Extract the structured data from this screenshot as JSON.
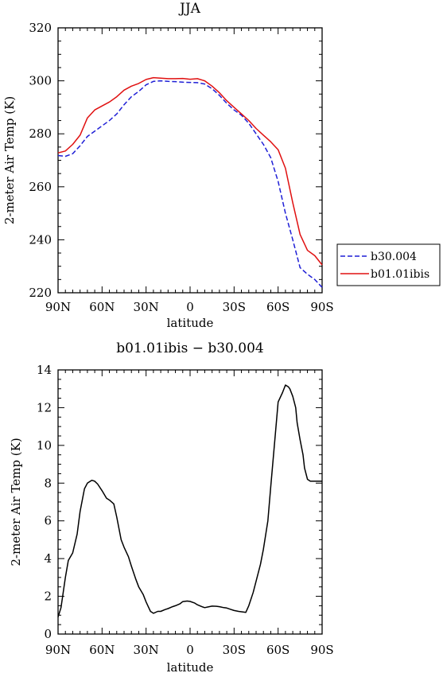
{
  "chart_data": [
    {
      "type": "line",
      "title": "JJA",
      "xlabel": "latitude",
      "ylabel": "2-meter Air Temp (K)",
      "xlim": [
        -90,
        90
      ],
      "ylim": [
        220,
        320
      ],
      "x_ticks": [
        -90,
        -60,
        -30,
        0,
        30,
        60,
        90
      ],
      "x_tick_labels": [
        "90N",
        "60N",
        "30N",
        "0",
        "30S",
        "60S",
        "90S"
      ],
      "y_ticks": [
        220,
        240,
        260,
        280,
        300,
        320
      ],
      "y_tick_labels": [
        "220",
        "240",
        "260",
        "280",
        "300",
        "320"
      ],
      "grid": false,
      "legend_position": "right",
      "series": [
        {
          "name": "b30.004",
          "color": "#1f1fd6",
          "dash": "dashed",
          "x": [
            -90,
            -85,
            -80,
            -75,
            -70,
            -65,
            -60,
            -55,
            -50,
            -45,
            -40,
            -35,
            -30,
            -25,
            -20,
            -15,
            -10,
            -5,
            0,
            5,
            10,
            15,
            20,
            25,
            30,
            35,
            40,
            45,
            50,
            55,
            60,
            65,
            70,
            75,
            80,
            85,
            90
          ],
          "y": [
            271.8,
            271.5,
            272.5,
            275.5,
            279,
            281,
            283,
            285,
            287.5,
            291,
            294,
            296,
            298.5,
            299.8,
            300,
            299.8,
            299.7,
            299.5,
            299.4,
            299.3,
            298.8,
            297,
            294.5,
            291.5,
            289,
            287,
            284,
            280,
            276,
            271,
            262,
            250,
            240,
            229.5,
            227,
            225,
            222
          ]
        },
        {
          "name": "b01.01ibis",
          "color": "#e01010",
          "dash": "solid",
          "x": [
            -90,
            -85,
            -80,
            -75,
            -70,
            -65,
            -60,
            -55,
            -50,
            -45,
            -40,
            -35,
            -30,
            -25,
            -20,
            -15,
            -10,
            -5,
            0,
            5,
            10,
            15,
            20,
            25,
            30,
            35,
            40,
            45,
            50,
            55,
            60,
            65,
            70,
            75,
            80,
            85,
            90
          ],
          "y": [
            272.8,
            273.5,
            276,
            279.5,
            286,
            289,
            290.5,
            292,
            294,
            296.5,
            298,
            299,
            300.5,
            301.2,
            301,
            300.8,
            300.8,
            300.9,
            300.6,
            300.8,
            300,
            298,
            295.5,
            292.5,
            290,
            287.5,
            285,
            282,
            279.5,
            277,
            274,
            267,
            254,
            242,
            236,
            234,
            230.5
          ]
        }
      ]
    },
    {
      "type": "line",
      "title": "b01.01ibis − b30.004",
      "xlabel": "latitude",
      "ylabel": "2-meter Air Temp (K)",
      "xlim": [
        -90,
        90
      ],
      "ylim": [
        0,
        14
      ],
      "x_ticks": [
        -90,
        -60,
        -30,
        0,
        30,
        60,
        90
      ],
      "x_tick_labels": [
        "90N",
        "60N",
        "30N",
        "0",
        "30S",
        "60S",
        "90S"
      ],
      "y_ticks": [
        0,
        2,
        4,
        6,
        8,
        10,
        12,
        14
      ],
      "y_tick_labels": [
        "0",
        "2",
        "4",
        "6",
        "8",
        "10",
        "12",
        "14"
      ],
      "grid": false,
      "series": [
        {
          "color": "#000000",
          "dash": "solid",
          "x": [
            -90,
            -88,
            -85,
            -83,
            -80,
            -77,
            -75,
            -72,
            -70,
            -67,
            -65,
            -63,
            -60,
            -57,
            -55,
            -52,
            -50,
            -47,
            -45,
            -42,
            -40,
            -37,
            -35,
            -32,
            -30,
            -27,
            -25,
            -22,
            -20,
            -17,
            -15,
            -12,
            -10,
            -7,
            -5,
            -2,
            0,
            3,
            5,
            8,
            10,
            13,
            15,
            18,
            20,
            23,
            25,
            28,
            30,
            33,
            35,
            38,
            40,
            43,
            45,
            48,
            50,
            53,
            55,
            58,
            60,
            63,
            65,
            67,
            68,
            70,
            72,
            73,
            75,
            77,
            78,
            80,
            82,
            83,
            85,
            87,
            88,
            90
          ],
          "y": [
            0.9,
            1.4,
            3,
            3.9,
            4.3,
            5.3,
            6.5,
            7.7,
            8,
            8.15,
            8.1,
            7.95,
            7.6,
            7.2,
            7.1,
            6.9,
            6.2,
            5,
            4.6,
            4.1,
            3.6,
            2.9,
            2.5,
            2.1,
            1.7,
            1.2,
            1.1,
            1.2,
            1.2,
            1.3,
            1.35,
            1.45,
            1.5,
            1.6,
            1.72,
            1.75,
            1.73,
            1.65,
            1.55,
            1.45,
            1.4,
            1.45,
            1.48,
            1.47,
            1.45,
            1.4,
            1.38,
            1.3,
            1.25,
            1.2,
            1.18,
            1.15,
            1.5,
            2.2,
            2.8,
            3.7,
            4.5,
            6,
            7.8,
            10.5,
            12.3,
            12.8,
            13.2,
            13.1,
            13,
            12.6,
            12,
            11.2,
            10.3,
            9.5,
            8.8,
            8.2,
            8.1,
            8.1,
            8.1,
            8.1,
            8.1,
            8.1
          ]
        }
      ]
    }
  ]
}
